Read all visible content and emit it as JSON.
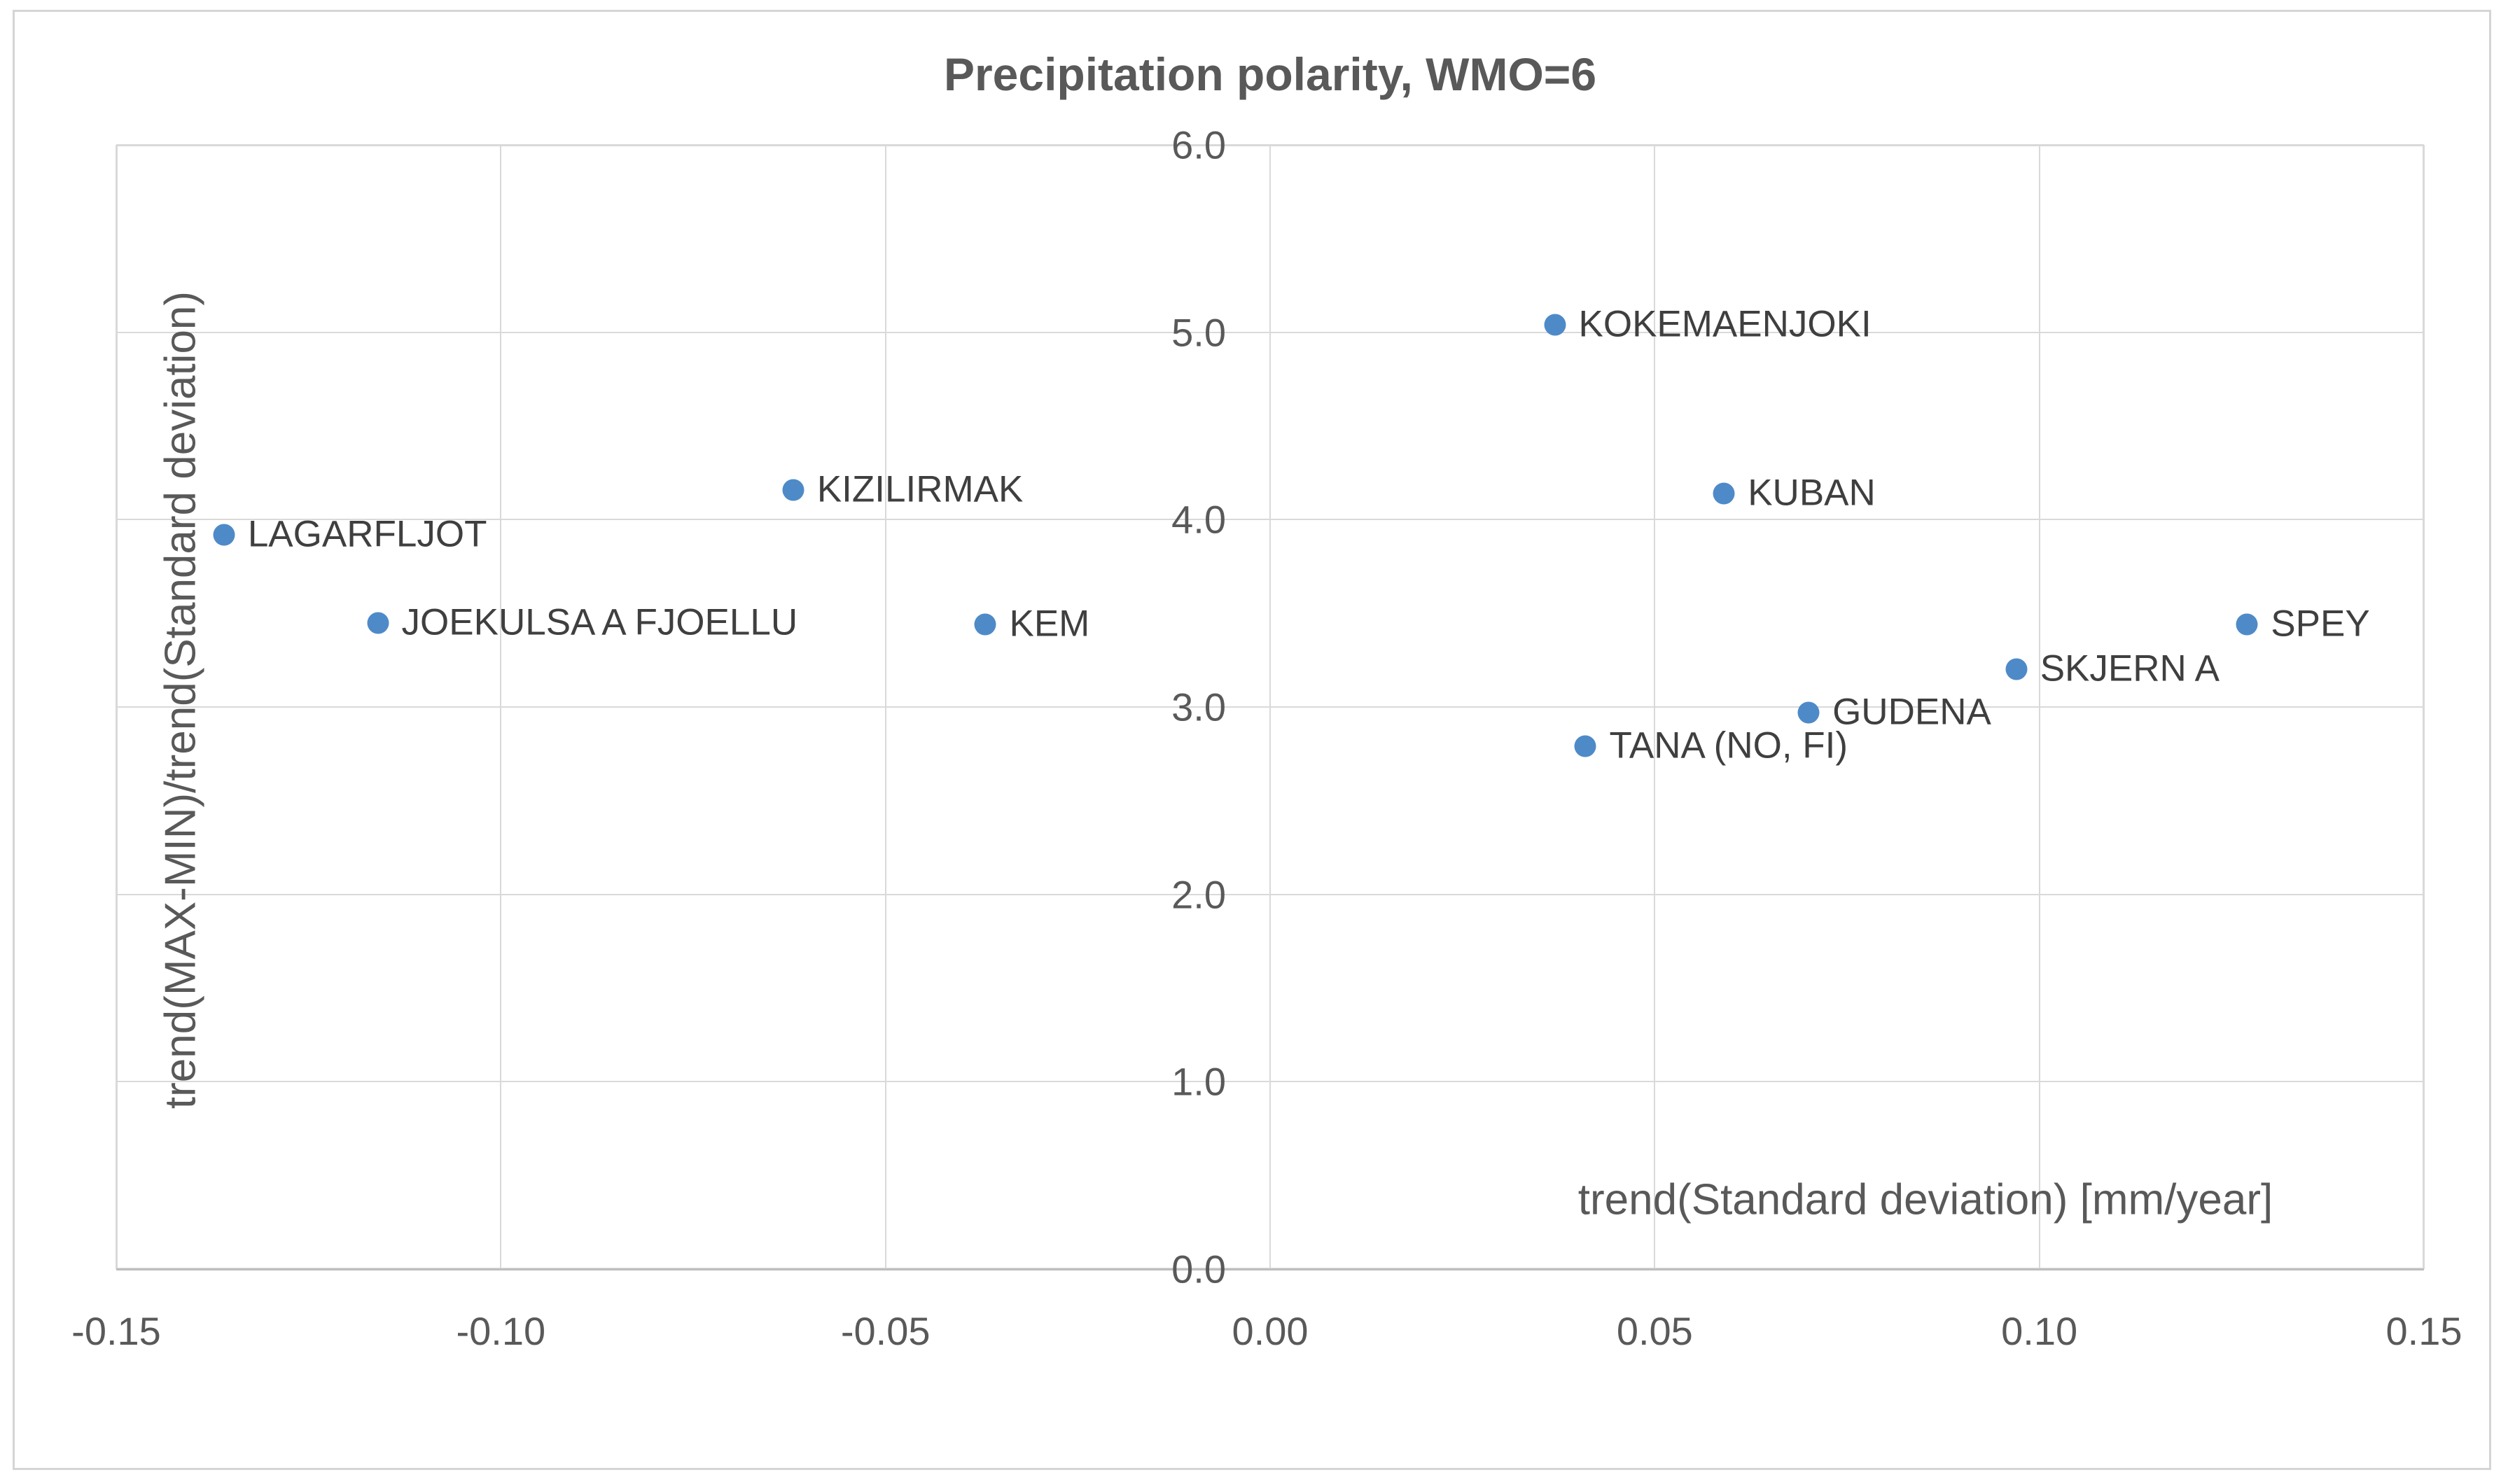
{
  "chart": {
    "title": "Precipitation polarity, WMO=6"
  },
  "colors": {
    "marker": "#4E8AC8",
    "title_text": "#595959",
    "tick_text": "#595959",
    "point_label_text": "#3F3F3F",
    "gridline": "#D9D9D9",
    "axis_line": "#BFBFBF",
    "frame_border": "#D5D5D5",
    "background": "#FFFFFF"
  },
  "chart_data": {
    "type": "scatter",
    "title": "Precipitation polarity, WMO=6",
    "xlabel": "trend(Standard deviation) [mm/year]",
    "ylabel": "trend(MAX-MIN)/trend(Standard deviation)",
    "xlim": [
      -0.15,
      0.15
    ],
    "ylim": [
      0.0,
      6.0
    ],
    "grid": true,
    "legend": false,
    "axis_cross_x": 0,
    "xticks": [
      {
        "value": -0.15,
        "label": "-0.15"
      },
      {
        "value": -0.1,
        "label": "-0.10"
      },
      {
        "value": -0.05,
        "label": "-0.05"
      },
      {
        "value": 0.0,
        "label": "0.00"
      },
      {
        "value": 0.05,
        "label": "0.05"
      },
      {
        "value": 0.1,
        "label": "0.10"
      },
      {
        "value": 0.15,
        "label": "0.15"
      }
    ],
    "yticks": [
      {
        "value": 0.0,
        "label": "0.0"
      },
      {
        "value": 1.0,
        "label": "1.0"
      },
      {
        "value": 2.0,
        "label": "2.0"
      },
      {
        "value": 3.0,
        "label": "3.0"
      },
      {
        "value": 4.0,
        "label": "4.0"
      },
      {
        "value": 5.0,
        "label": "5.0"
      },
      {
        "value": 6.0,
        "label": "6.0"
      }
    ],
    "points": [
      {
        "label": "LAGARFLJOT",
        "x": -0.136,
        "y": 3.92
      },
      {
        "label": "JOEKULSA A FJOELLU",
        "x": -0.116,
        "y": 3.45
      },
      {
        "label": "KIZILIRMAK",
        "x": -0.062,
        "y": 4.16
      },
      {
        "label": "KEM",
        "x": -0.037,
        "y": 3.44
      },
      {
        "label": "KOKEMAENJOKI",
        "x": 0.037,
        "y": 5.04
      },
      {
        "label": "KUBAN",
        "x": 0.059,
        "y": 4.14
      },
      {
        "label": "TANA (NO, FI)",
        "x": 0.041,
        "y": 2.79
      },
      {
        "label": "GUDENA",
        "x": 0.07,
        "y": 2.97
      },
      {
        "label": "SKJERN A",
        "x": 0.097,
        "y": 3.2
      },
      {
        "label": "SPEY",
        "x": 0.127,
        "y": 3.44
      }
    ]
  }
}
